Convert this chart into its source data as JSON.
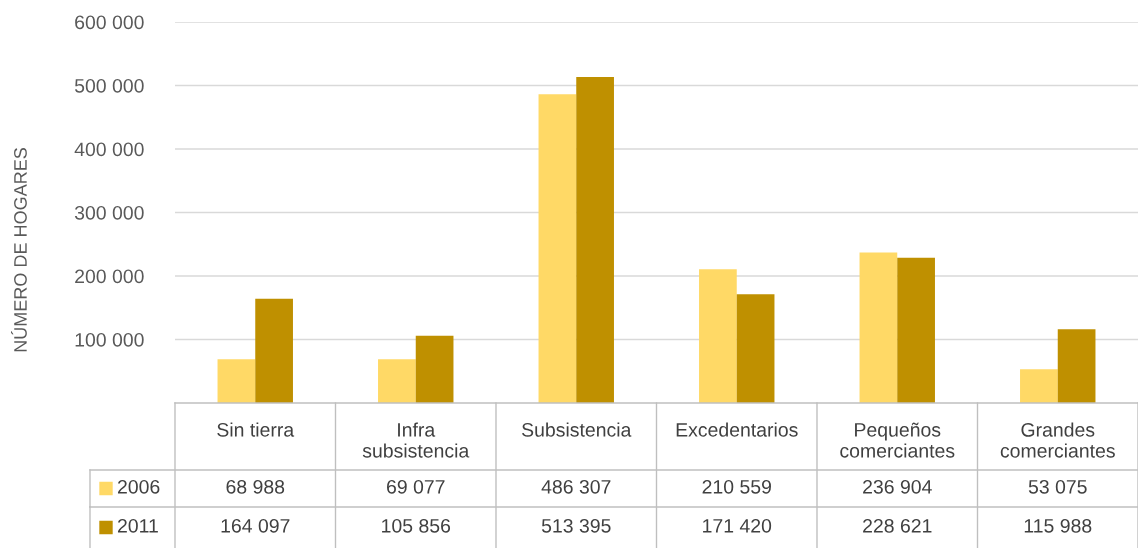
{
  "chart_data": {
    "type": "bar",
    "ylabel": "NÚMERO DE HOGARES",
    "categories": [
      "Sin tierra",
      "Infra\nsubsistencia",
      "Subsistencia",
      "Excedentarios",
      "Pequeños\ncomerciantes",
      "Grandes\ncomerciantes"
    ],
    "series": [
      {
        "name": "2006",
        "color": "#ffd966",
        "values": [
          68988,
          69077,
          486307,
          210559,
          236904,
          53075
        ],
        "value_labels": [
          "68 988",
          "69 077",
          "486 307",
          "210 559",
          "236 904",
          "53 075"
        ]
      },
      {
        "name": "2011",
        "color": "#bf9000",
        "values": [
          164097,
          105856,
          513395,
          171420,
          228621,
          115988
        ],
        "value_labels": [
          "164 097",
          "105 856",
          "513 395",
          "171 420",
          "228 621",
          "115 988"
        ]
      }
    ],
    "ylim": [
      0,
      600000
    ],
    "yticks": [
      {
        "value": 100000,
        "label": "100 000"
      },
      {
        "value": 200000,
        "label": "200 000"
      },
      {
        "value": 300000,
        "label": "300 000"
      },
      {
        "value": 400000,
        "label": "400 000"
      },
      {
        "value": 500000,
        "label": "500 000"
      },
      {
        "value": 600000,
        "label": "600 000"
      }
    ],
    "grid": "y",
    "legend": "bottom left"
  }
}
